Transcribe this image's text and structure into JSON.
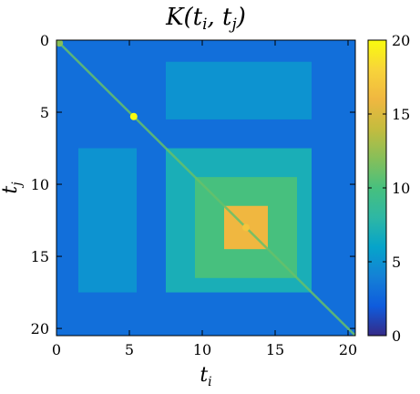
{
  "chart_data": {
    "type": "heatmap",
    "title": "K(t_i, t_j)",
    "title_parts": {
      "base": "K(t",
      "sub1": "i",
      "mid": ", t",
      "sub2": "j",
      "end": ")"
    },
    "xlabel": {
      "base": "t",
      "sub": "i"
    },
    "ylabel": {
      "base": "t",
      "sub": "j"
    },
    "xlim": [
      0,
      20.5
    ],
    "ylim": [
      0,
      20.5
    ],
    "y_direction": "top-to-bottom",
    "x_ticks": [
      0,
      5,
      10,
      15,
      20
    ],
    "y_ticks": [
      0,
      5,
      10,
      15,
      20
    ],
    "colorbar": {
      "min": 0,
      "max": 20,
      "ticks": [
        0,
        5,
        10,
        15,
        20
      ],
      "colormap": "parula",
      "placement": "right"
    },
    "background_value": 3,
    "blocks": [
      {
        "x": [
          7.5,
          17.5
        ],
        "y": [
          1.5,
          5.5
        ],
        "value": 5
      },
      {
        "x": [
          1.5,
          5.5
        ],
        "y": [
          7.5,
          17.5
        ],
        "value": 5
      },
      {
        "x": [
          7.5,
          17.5
        ],
        "y": [
          7.5,
          17.5
        ],
        "value": 7
      },
      {
        "x": [
          9.5,
          16.5
        ],
        "y": [
          9.5,
          16.5
        ],
        "value": 10
      },
      {
        "x": [
          11.5,
          14.5
        ],
        "y": [
          11.5,
          14.5
        ],
        "value": 16
      }
    ],
    "diagonal_peaks": [
      {
        "t": 0.2,
        "value": 12
      },
      {
        "t": 5.3,
        "value": 20
      },
      {
        "t": 13.0,
        "value": 17
      }
    ],
    "grid": false
  }
}
